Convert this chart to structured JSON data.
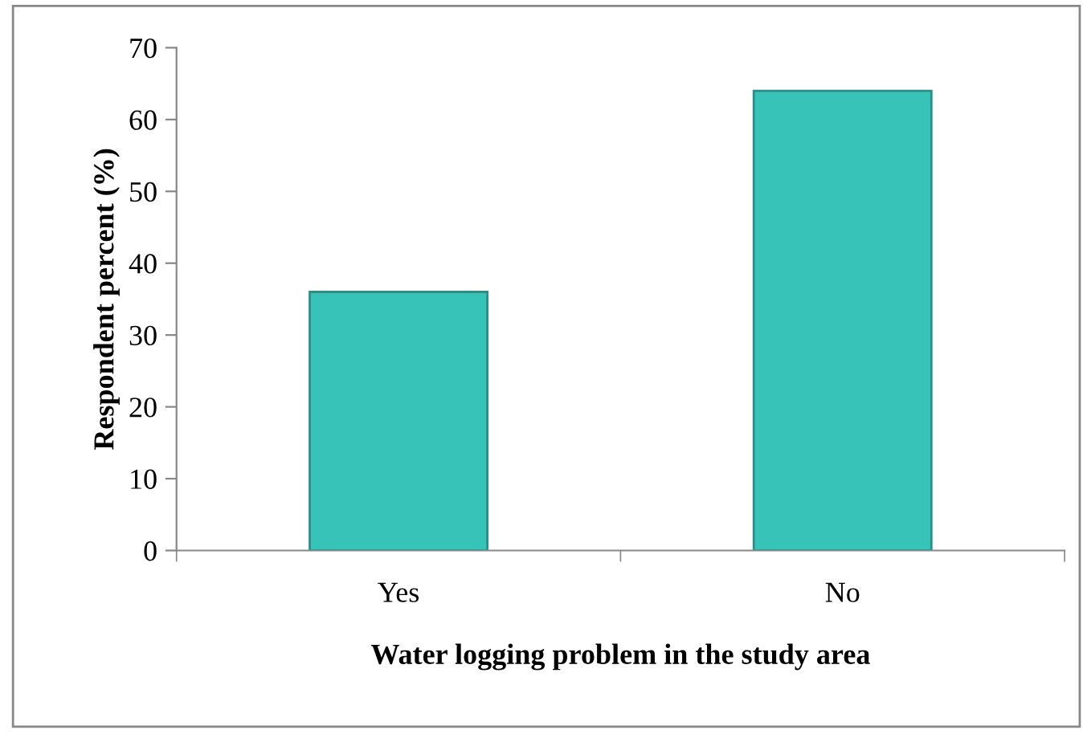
{
  "chart_data": {
    "type": "bar",
    "xlabel": "Water logging problem in the study area",
    "ylabel": "Respondent percent (%)",
    "categories": [
      "Yes",
      "No"
    ],
    "values": [
      36,
      64
    ],
    "color": "#38c3b8",
    "ylim": [
      0,
      70
    ],
    "yticks": [
      0,
      10,
      20,
      30,
      40,
      50,
      60,
      70
    ],
    "grid": false,
    "legend": false
  }
}
